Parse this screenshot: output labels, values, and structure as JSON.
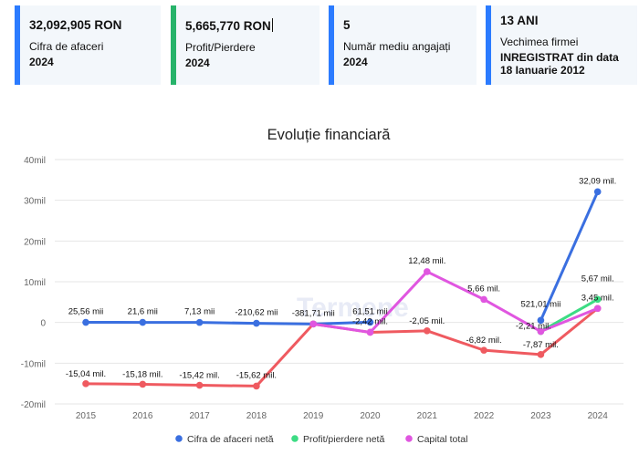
{
  "cards": [
    {
      "value": "32,092,905 RON",
      "label": "Cifra de afaceri",
      "year": "2024"
    },
    {
      "value": "5,665,770 RON",
      "label": "Profit/Pierdere",
      "year": "2024"
    },
    {
      "value": "5",
      "label": "Număr mediu angajați",
      "year": "2024"
    },
    {
      "value": "13 ANI",
      "label": "Vechimea firmei",
      "extra1": "INREGISTRAT din data",
      "extra2": "18 Ianuarie 2012"
    }
  ],
  "watermark": "Termene",
  "colors": {
    "accent_blue": "#2b7bff",
    "accent_green": "#27b36a",
    "series_blue": "#3a6fe0",
    "series_green": "#3ddc84",
    "series_pink": "#e056e0",
    "series_red": "#ef5a60"
  },
  "chart_data": {
    "type": "line",
    "title": "Evoluție financiară",
    "categories": [
      "2015",
      "2016",
      "2017",
      "2018",
      "2019",
      "2020",
      "2021",
      "2022",
      "2023",
      "2024"
    ],
    "ylim": [
      -20,
      40
    ],
    "yticks": [
      "-20mil",
      "-10mil",
      "0",
      "10mil",
      "20mil",
      "30mil",
      "40mil"
    ],
    "ytick_values": [
      -20,
      -10,
      0,
      10,
      20,
      30,
      40
    ],
    "grid": true,
    "legend_position": "bottom",
    "series": [
      {
        "name": "Cifra de afaceri netă",
        "color": "#3a6fe0",
        "values": [
          0.02556,
          0.0216,
          0.00713,
          -0.21062,
          -0.38171,
          0.06151,
          null,
          null,
          0.52101,
          32.09
        ],
        "labels": [
          "25,56 mii",
          "21,6 mii",
          "7,13 mii",
          "-210,62 mii",
          "-381,71 mii",
          "61,51 mii",
          "",
          "",
          "521,01 mii",
          "32,09 mil."
        ]
      },
      {
        "name": "Profit/pierdere netă",
        "color": "#3ddc84",
        "values": [
          null,
          null,
          null,
          null,
          null,
          null,
          null,
          null,
          -2.21,
          5.67
        ],
        "labels": [
          "",
          "",
          "",
          "",
          "",
          "",
          "",
          "",
          "",
          "5,67 mil."
        ]
      },
      {
        "name": "Capital total",
        "color": "#e056e0",
        "values": [
          null,
          null,
          null,
          null,
          -0.38171,
          -2.42,
          12.48,
          5.66,
          -2.21,
          3.45
        ],
        "labels": [
          "",
          "",
          "",
          "",
          "",
          "",
          "12,48 mil.",
          "5,66 mil.",
          "-2,21 mil.",
          "3,45 mil."
        ]
      },
      {
        "name": "",
        "color": "#ef5a60",
        "values": [
          -15.04,
          -15.18,
          -15.42,
          -15.62,
          -0.38171,
          -2.42,
          -2.05,
          -6.82,
          -7.87,
          3.45
        ],
        "labels": [
          "-15,04 mil.",
          "-15,18 mil.",
          "-15,42 mil.",
          "-15,62 mil.",
          "",
          "-2,42 mil.",
          "-2,05 mil.",
          "-6,82 mil.",
          "-7,87 mil.",
          ""
        ]
      }
    ],
    "legend": [
      "Cifra de afaceri netă",
      "Profit/pierdere netă",
      "Capital total"
    ]
  }
}
